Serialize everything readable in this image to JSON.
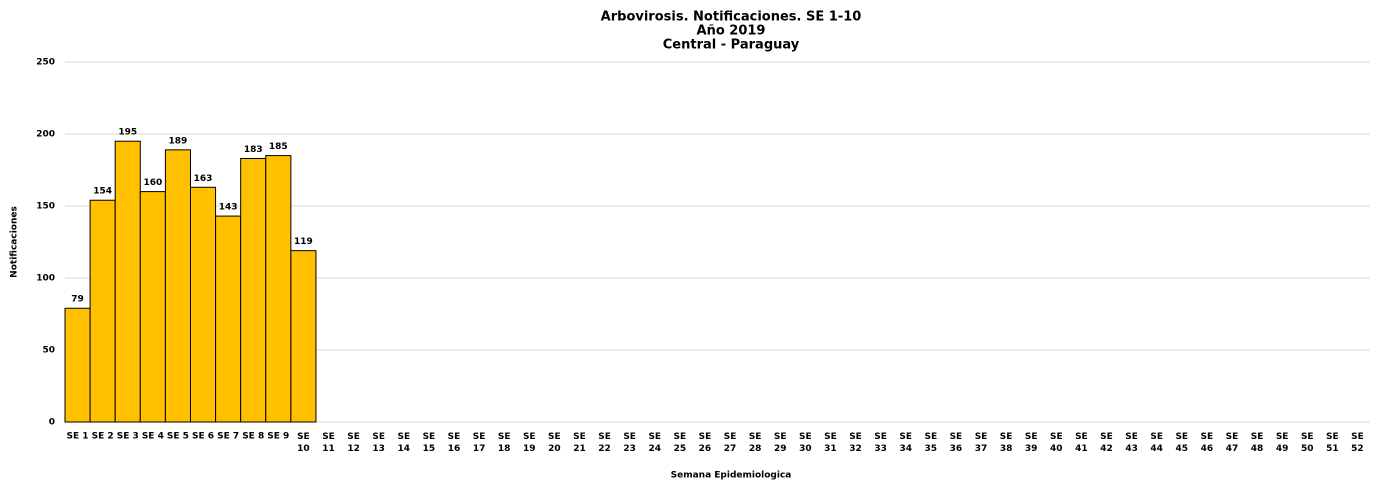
{
  "chart_data": {
    "type": "bar",
    "title": [
      "Arbovirosis. Notificaciones. SE 1-10",
      "Año 2019",
      "Central - Paraguay"
    ],
    "x_label": "Semana Epidemiologica",
    "y_label": "Notificaciones",
    "categories": [
      "SE 1",
      "SE 2",
      "SE 3",
      "SE 4",
      "SE 5",
      "SE 6",
      "SE 7",
      "SE 8",
      "SE 9",
      "SE 10",
      "SE 11",
      "SE 12",
      "SE 13",
      "SE 14",
      "SE 15",
      "SE 16",
      "SE 17",
      "SE 18",
      "SE 19",
      "SE 20",
      "SE 21",
      "SE 22",
      "SE 23",
      "SE 24",
      "SE 25",
      "SE 26",
      "SE 27",
      "SE 28",
      "SE 29",
      "SE 30",
      "SE 31",
      "SE 32",
      "SE 33",
      "SE 34",
      "SE 35",
      "SE 36",
      "SE 37",
      "SE 38",
      "SE 39",
      "SE 40",
      "SE 41",
      "SE 42",
      "SE 43",
      "SE 44",
      "SE 45",
      "SE 46",
      "SE 47",
      "SE 48",
      "SE 49",
      "SE 50",
      "SE 51",
      "SE 52"
    ],
    "values": [
      79,
      154,
      195,
      160,
      189,
      163,
      143,
      183,
      185,
      119,
      null,
      null,
      null,
      null,
      null,
      null,
      null,
      null,
      null,
      null,
      null,
      null,
      null,
      null,
      null,
      null,
      null,
      null,
      null,
      null,
      null,
      null,
      null,
      null,
      null,
      null,
      null,
      null,
      null,
      null,
      null,
      null,
      null,
      null,
      null,
      null,
      null,
      null,
      null,
      null,
      null,
      null
    ],
    "color": "#ffc000",
    "ylim": [
      0,
      250
    ],
    "yticks": [
      0,
      50,
      100,
      150,
      200,
      250
    ],
    "grid": true
  }
}
